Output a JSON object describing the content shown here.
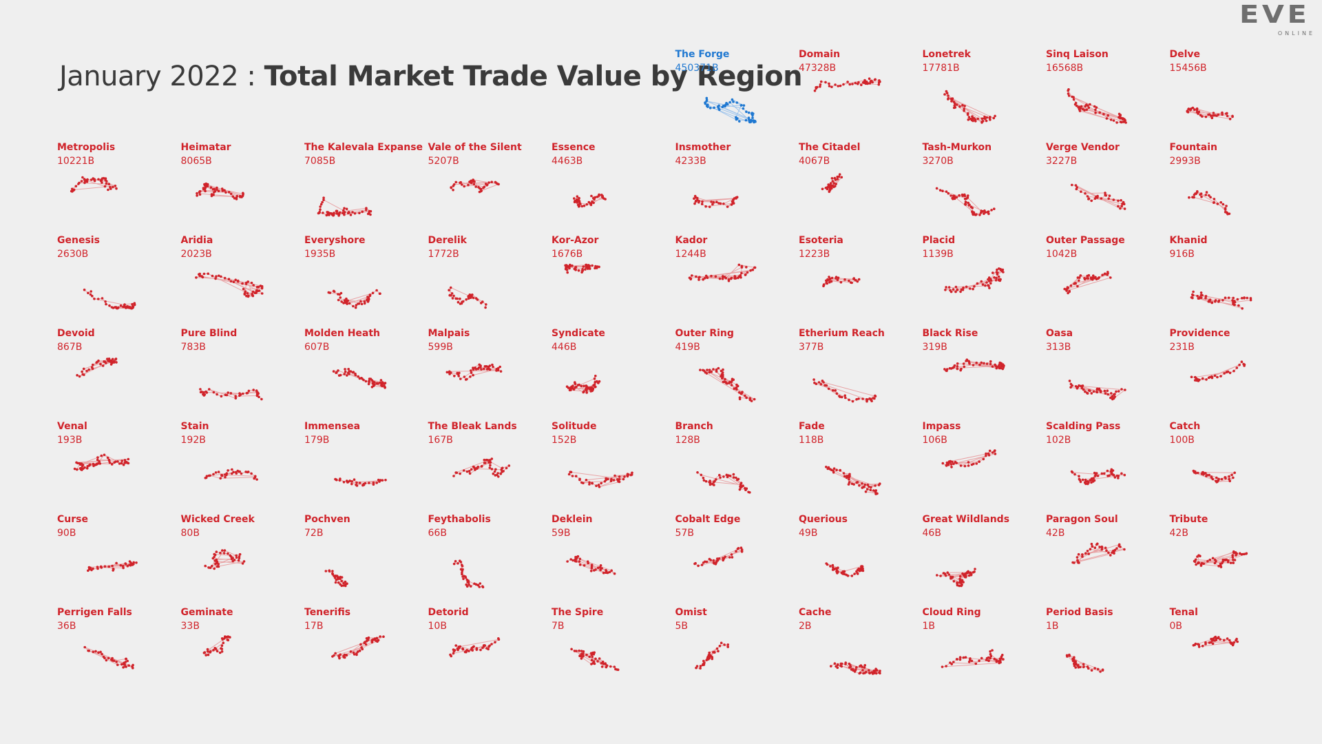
{
  "header": {
    "title_prefix": "January 2022 : ",
    "title_main": "Total Market Trade Value by Region"
  },
  "logo": {
    "word": "EVE",
    "sub": "ONLINE"
  },
  "colors": {
    "highlight": "#1f78d1",
    "regions": "#d0232a",
    "links": "#e8a3a5",
    "title": "#3a3a3a"
  },
  "chart_data": {
    "type": "small-multiples",
    "title": "January 2022 : Total Market Trade Value by Region",
    "unit": "B",
    "highlight": "The Forge",
    "regions": [
      {
        "name": "The Forge",
        "value": "450371B"
      },
      {
        "name": "Domain",
        "value": "47328B"
      },
      {
        "name": "Lonetrek",
        "value": "17781B"
      },
      {
        "name": "Sinq Laison",
        "value": "16568B"
      },
      {
        "name": "Delve",
        "value": "15456B"
      },
      {
        "name": "Metropolis",
        "value": "10221B"
      },
      {
        "name": "Heimatar",
        "value": "8065B"
      },
      {
        "name": "The Kalevala Expanse",
        "value": "7085B"
      },
      {
        "name": "Vale of the Silent",
        "value": "5207B"
      },
      {
        "name": "Essence",
        "value": "4463B"
      },
      {
        "name": "Insmother",
        "value": "4233B"
      },
      {
        "name": "The Citadel",
        "value": "4067B"
      },
      {
        "name": "Tash-Murkon",
        "value": "3270B"
      },
      {
        "name": "Verge Vendor",
        "value": "3227B"
      },
      {
        "name": "Fountain",
        "value": "2993B"
      },
      {
        "name": "Genesis",
        "value": "2630B"
      },
      {
        "name": "Aridia",
        "value": "2023B"
      },
      {
        "name": "Everyshore",
        "value": "1935B"
      },
      {
        "name": "Derelik",
        "value": "1772B"
      },
      {
        "name": "Kor-Azor",
        "value": "1676B"
      },
      {
        "name": "Kador",
        "value": "1244B"
      },
      {
        "name": "Esoteria",
        "value": "1223B"
      },
      {
        "name": "Placid",
        "value": "1139B"
      },
      {
        "name": "Outer Passage",
        "value": "1042B"
      },
      {
        "name": "Khanid",
        "value": "916B"
      },
      {
        "name": "Devoid",
        "value": "867B"
      },
      {
        "name": "Pure Blind",
        "value": "783B"
      },
      {
        "name": "Molden Heath",
        "value": "607B"
      },
      {
        "name": "Malpais",
        "value": "599B"
      },
      {
        "name": "Syndicate",
        "value": "446B"
      },
      {
        "name": "Outer Ring",
        "value": "419B"
      },
      {
        "name": "Etherium Reach",
        "value": "377B"
      },
      {
        "name": "Black Rise",
        "value": "319B"
      },
      {
        "name": "Oasa",
        "value": "313B"
      },
      {
        "name": "Providence",
        "value": "231B"
      },
      {
        "name": "Venal",
        "value": "193B"
      },
      {
        "name": "Stain",
        "value": "192B"
      },
      {
        "name": "Immensea",
        "value": "179B"
      },
      {
        "name": "The Bleak Lands",
        "value": "167B"
      },
      {
        "name": "Solitude",
        "value": "152B"
      },
      {
        "name": "Branch",
        "value": "128B"
      },
      {
        "name": "Fade",
        "value": "118B"
      },
      {
        "name": "Impass",
        "value": "106B"
      },
      {
        "name": "Scalding Pass",
        "value": "102B"
      },
      {
        "name": "Catch",
        "value": "100B"
      },
      {
        "name": "Curse",
        "value": "90B"
      },
      {
        "name": "Wicked Creek",
        "value": "80B"
      },
      {
        "name": "Pochven",
        "value": "72B"
      },
      {
        "name": "Feythabolis",
        "value": "66B"
      },
      {
        "name": "Deklein",
        "value": "59B"
      },
      {
        "name": "Cobalt Edge",
        "value": "57B"
      },
      {
        "name": "Querious",
        "value": "49B"
      },
      {
        "name": "Great Wildlands",
        "value": "46B"
      },
      {
        "name": "Paragon Soul",
        "value": "42B"
      },
      {
        "name": "Tribute",
        "value": "42B"
      },
      {
        "name": "Perrigen Falls",
        "value": "36B"
      },
      {
        "name": "Geminate",
        "value": "33B"
      },
      {
        "name": "Tenerifis",
        "value": "17B"
      },
      {
        "name": "Detorid",
        "value": "10B"
      },
      {
        "name": "The Spire",
        "value": "7B"
      },
      {
        "name": "Omist",
        "value": "5B"
      },
      {
        "name": "Cache",
        "value": "2B"
      },
      {
        "name": "Cloud Ring",
        "value": "1B"
      },
      {
        "name": "Period Basis",
        "value": "1B"
      },
      {
        "name": "Tenal",
        "value": "0B"
      }
    ]
  }
}
